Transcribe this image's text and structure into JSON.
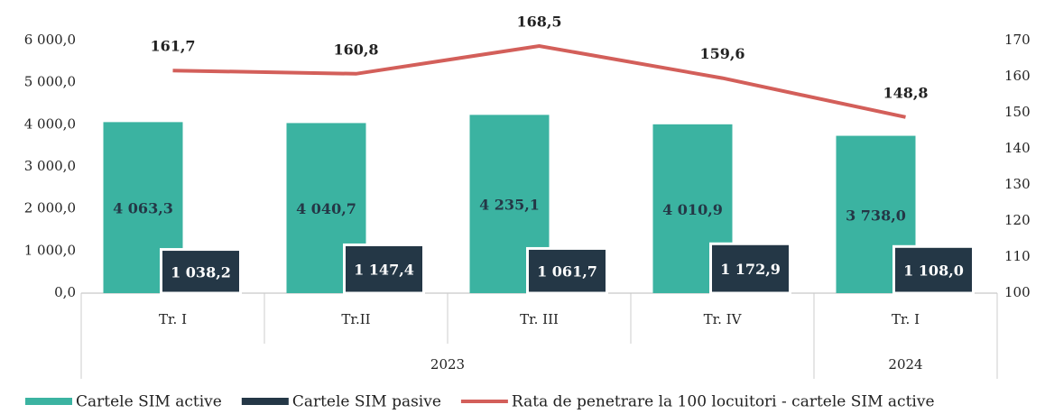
{
  "chart_data": {
    "type": "bar_line",
    "categories": [
      "Tr. I",
      "Tr.II",
      "Tr. III",
      "Tr. IV",
      "Tr. I"
    ],
    "years": [
      "2023",
      "2023",
      "2023",
      "2023",
      "2024"
    ],
    "series": [
      {
        "name": "Cartele SIM active",
        "color": "#3bb3a1",
        "type": "bar",
        "values": [
          4063.3,
          4040.7,
          4235.1,
          4010.9,
          3738.0
        ],
        "value_labels": [
          "4 063,3",
          "4 040,7",
          "4 235,1",
          "4 010,9",
          "3 738,0"
        ]
      },
      {
        "name": "Cartele SIM pasive",
        "color": "#243746",
        "type": "bar",
        "values": [
          1038.2,
          1147.4,
          1061.7,
          1172.9,
          1108.0
        ],
        "value_labels": [
          "1 038,2",
          "1 147,4",
          "1 061,7",
          "1 172,9",
          "1 108,0"
        ]
      },
      {
        "name": "Rata de penetrare la 100 locuitori - cartele SIM active",
        "color": "#d35f5a",
        "type": "line",
        "axis": "y2",
        "values": [
          161.7,
          160.8,
          168.5,
          159.6,
          148.8
        ],
        "value_labels": [
          "161,7",
          "160,8",
          "168,5",
          "159,6",
          "148,8"
        ]
      }
    ],
    "ylim": [
      0,
      6000
    ],
    "yticks": [
      {
        "value": 0,
        "label": "0,0"
      },
      {
        "value": 1000,
        "label": "1 000,0"
      },
      {
        "value": 2000,
        "label": "2 000,0"
      },
      {
        "value": 3000,
        "label": "3 000,0"
      },
      {
        "value": 4000,
        "label": "4 000,0"
      },
      {
        "value": 5000,
        "label": "5 000,0"
      },
      {
        "value": 6000,
        "label": "6 000,0"
      }
    ],
    "y2lim": [
      100,
      170
    ],
    "y2ticks": [
      100,
      110,
      120,
      130,
      140,
      150,
      160,
      170
    ],
    "legend": "bottom"
  }
}
